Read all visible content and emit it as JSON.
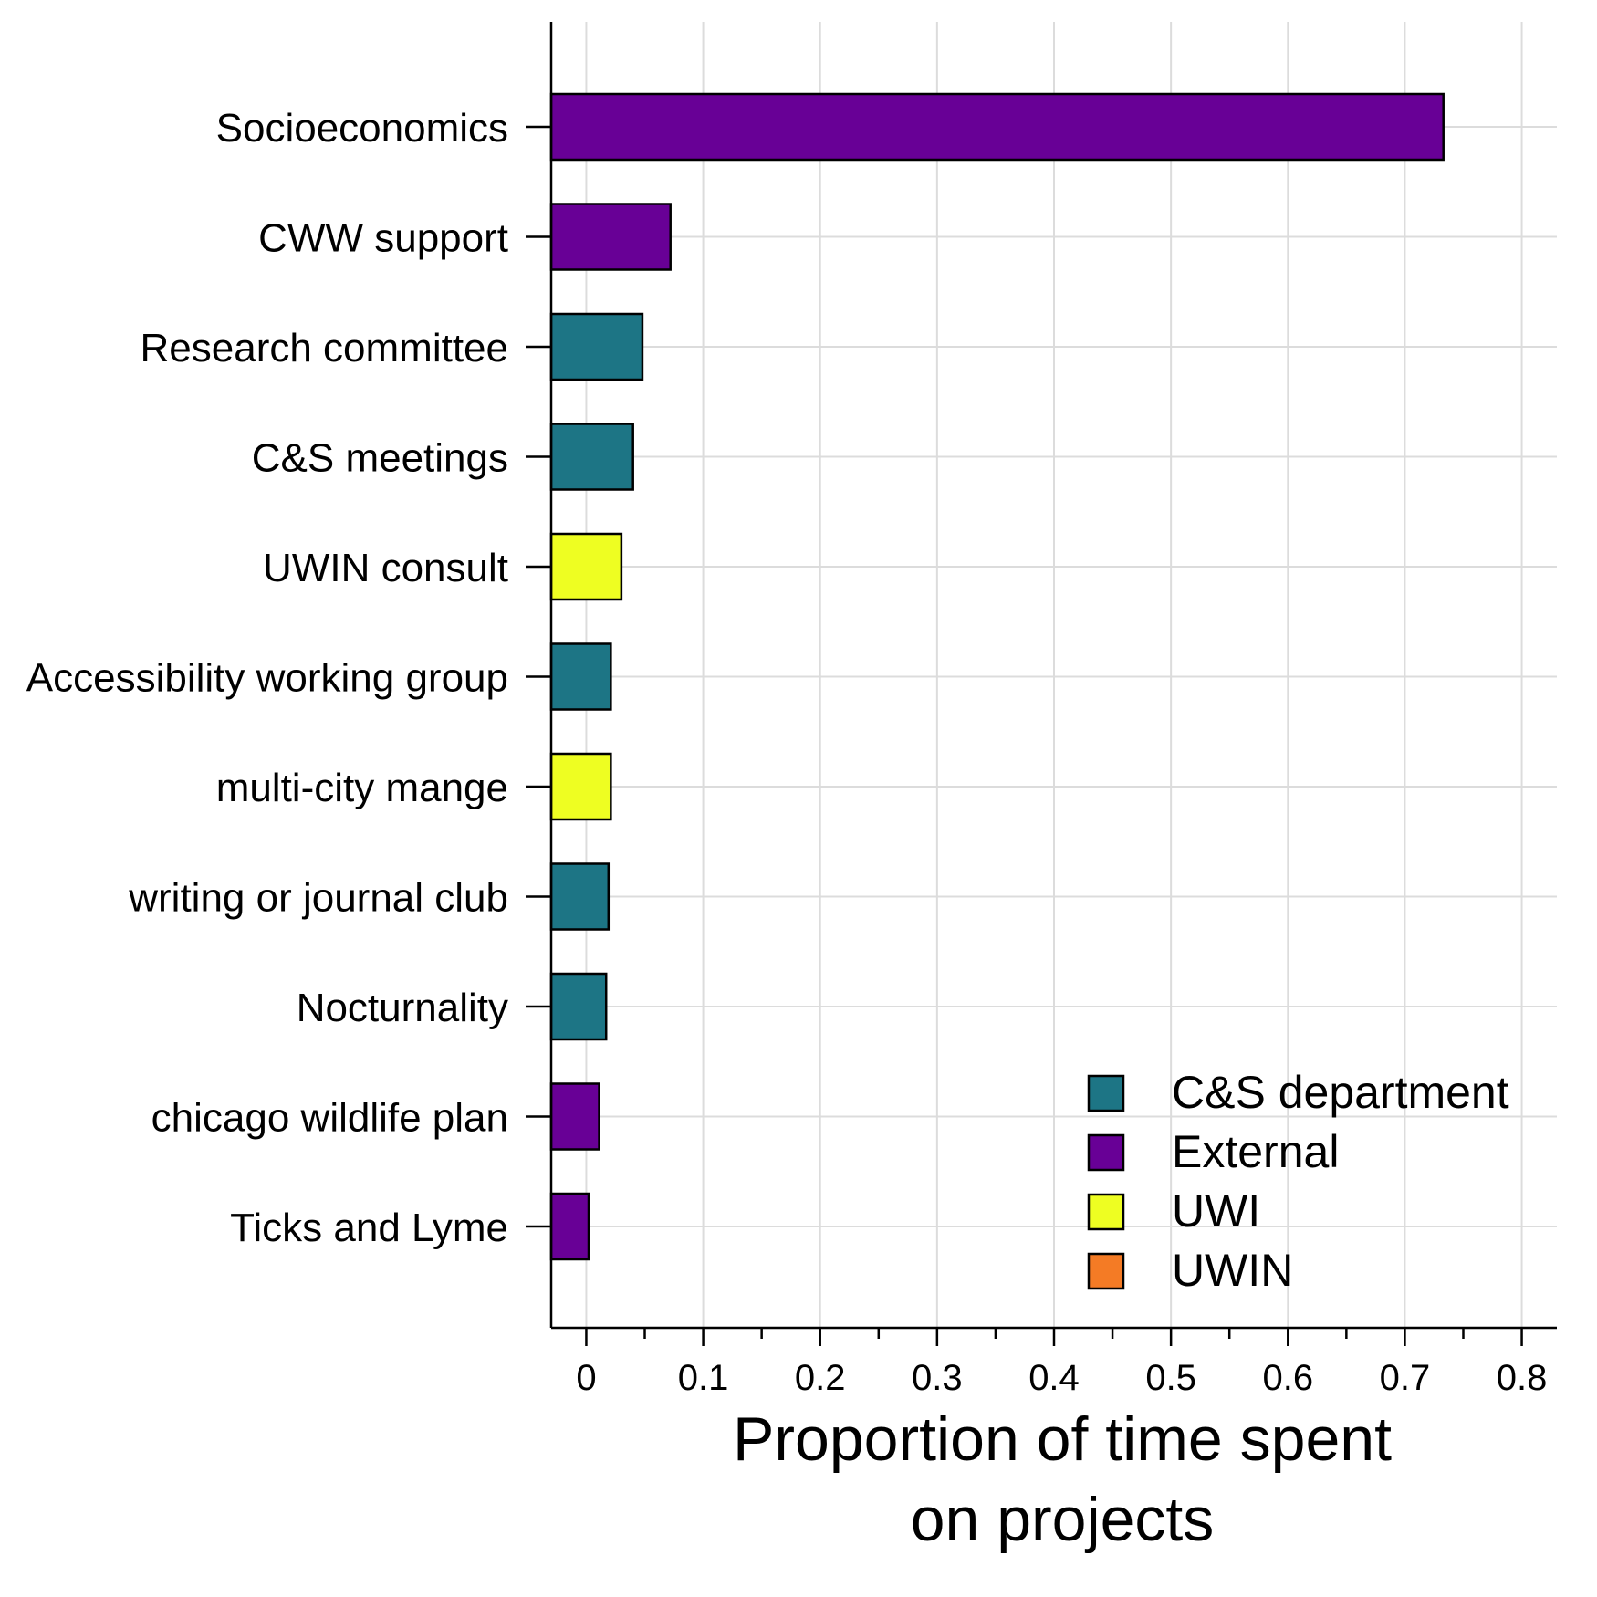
{
  "chart_data": {
    "type": "bar",
    "orientation": "horizontal",
    "categories": [
      "Socioeconomics",
      "CWW support",
      "Research committee",
      "C&S meetings",
      "UWIN consult",
      "Accessibility working group",
      "multi-city mange",
      "writing or journal club",
      "Nocturnality",
      "chicago wildlife plan",
      "Ticks and Lyme"
    ],
    "values": [
      0.733,
      0.072,
      0.048,
      0.04,
      0.03,
      0.021,
      0.021,
      0.019,
      0.017,
      0.011,
      0.002
    ],
    "groups": [
      "External",
      "External",
      "C&S department",
      "C&S department",
      "UWI",
      "C&S department",
      "UWI",
      "C&S department",
      "C&S department",
      "External",
      "External"
    ],
    "xlabel_lines": [
      "Proportion of time spent",
      "on projects"
    ],
    "xlim": [
      -0.03,
      0.83
    ],
    "xticks": [
      0,
      0.1,
      0.2,
      0.3,
      0.4,
      0.5,
      0.6,
      0.7,
      0.8
    ],
    "xtick_labels": [
      "0",
      "0.1",
      "0.2",
      "0.3",
      "0.4",
      "0.5",
      "0.6",
      "0.7",
      "0.8"
    ],
    "grid": true,
    "legend": {
      "placement": "bottom-right",
      "entries": [
        {
          "name": "C&S department",
          "color": "#1d7585"
        },
        {
          "name": "External",
          "color": "#680096"
        },
        {
          "name": "UWI",
          "color": "#eefe22"
        },
        {
          "name": "UWIN",
          "color": "#f47b25"
        }
      ]
    }
  }
}
